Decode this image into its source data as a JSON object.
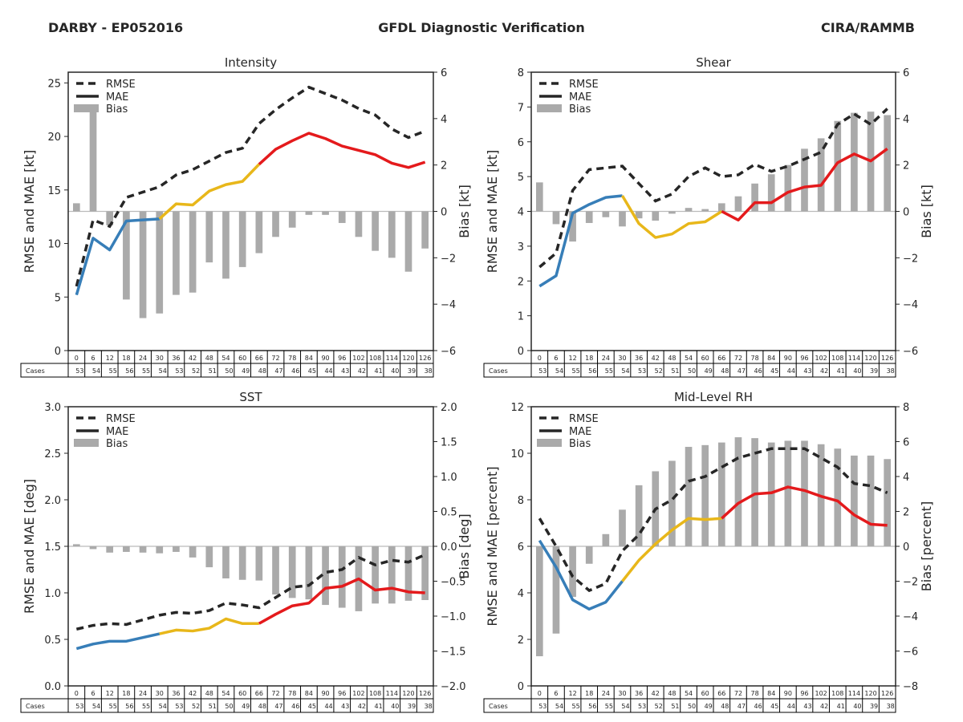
{
  "header": {
    "left": "DARBY - EP052016",
    "center": "GFDL Diagnostic Verification",
    "right": "CIRA/RAMMB"
  },
  "colors": {
    "early": "#377eb8",
    "mid": "#e8b71a",
    "late": "#e41a1c",
    "rmse": "#262626",
    "bias": "#aaaaaa",
    "zero_line": "#bbbbbb"
  },
  "legend": {
    "rmse": "RMSE",
    "mae": "MAE",
    "bias": "Bias"
  },
  "table": {
    "cases_label": "Cases",
    "hours": [
      "0",
      "6",
      "12",
      "18",
      "24",
      "30",
      "36",
      "42",
      "48",
      "54",
      "60",
      "66",
      "72",
      "78",
      "84",
      "90",
      "96",
      "102",
      "108",
      "114",
      "120",
      "126"
    ],
    "cases": [
      "53",
      "54",
      "55",
      "56",
      "55",
      "54",
      "53",
      "52",
      "51",
      "50",
      "49",
      "48",
      "47",
      "46",
      "45",
      "44",
      "43",
      "42",
      "41",
      "40",
      "39",
      "38"
    ]
  },
  "chart_data": [
    {
      "type": "line",
      "title": "Intensity",
      "ylabel": "RMSE and MAE [kt]",
      "y2label": "Bias [kt]",
      "ylim": [
        0,
        26
      ],
      "yticks": [
        "0",
        "5",
        "10",
        "15",
        "20",
        "25"
      ],
      "yticks_values": [
        0,
        5,
        10,
        15,
        20,
        25
      ],
      "y2lim": [
        -6,
        6
      ],
      "y2ticks": [
        "−6",
        "−4",
        "−2",
        "0",
        "2",
        "4",
        "6"
      ],
      "y2ticks_values": [
        -6,
        -4,
        -2,
        0,
        2,
        4,
        6
      ],
      "x": [
        0,
        6,
        12,
        18,
        24,
        30,
        36,
        42,
        48,
        54,
        60,
        66,
        72,
        78,
        84,
        90,
        96,
        102,
        108,
        114,
        120,
        126
      ],
      "legend_position": "upper-left",
      "series": [
        {
          "name": "RMSE",
          "values": [
            6.0,
            12.2,
            11.6,
            14.3,
            14.8,
            15.3,
            16.4,
            16.9,
            17.7,
            18.5,
            18.9,
            21.2,
            22.5,
            23.6,
            24.6,
            24.0,
            23.4,
            22.6,
            22.0,
            20.7,
            19.9,
            20.5
          ]
        },
        {
          "name": "MAE",
          "values": [
            5.2,
            10.5,
            9.4,
            12.1,
            12.2,
            12.3,
            13.7,
            13.6,
            14.9,
            15.5,
            15.8,
            17.4,
            18.8,
            19.6,
            20.3,
            19.8,
            19.1,
            18.7,
            18.3,
            17.5,
            17.1,
            17.6
          ]
        },
        {
          "name": "Bias",
          "values": [
            0.35,
            4.45,
            -0.6,
            -3.8,
            -4.6,
            -4.4,
            -3.6,
            -3.5,
            -2.2,
            -2.9,
            -2.4,
            -1.8,
            -1.1,
            -0.7,
            -0.15,
            -0.15,
            -0.5,
            -1.1,
            -1.7,
            -2.0,
            -2.6,
            -1.6
          ]
        }
      ]
    },
    {
      "type": "line",
      "title": "Shear",
      "ylabel": "RMSE and MAE [kt]",
      "y2label": "Bias [kt]",
      "ylim": [
        0,
        8
      ],
      "yticks": [
        "0",
        "1",
        "2",
        "3",
        "4",
        "5",
        "6",
        "7",
        "8"
      ],
      "yticks_values": [
        0,
        1,
        2,
        3,
        4,
        5,
        6,
        7,
        8
      ],
      "y2lim": [
        -6,
        6
      ],
      "y2ticks": [
        "−6",
        "−4",
        "−2",
        "0",
        "2",
        "4",
        "6"
      ],
      "y2ticks_values": [
        -6,
        -4,
        -2,
        0,
        2,
        4,
        6
      ],
      "x": [
        0,
        6,
        12,
        18,
        24,
        30,
        36,
        42,
        48,
        54,
        60,
        66,
        72,
        78,
        84,
        90,
        96,
        102,
        108,
        114,
        120,
        126
      ],
      "legend_position": "upper-left",
      "series": [
        {
          "name": "RMSE",
          "values": [
            2.4,
            2.8,
            4.6,
            5.2,
            5.25,
            5.3,
            4.8,
            4.3,
            4.5,
            5.0,
            5.25,
            5.0,
            5.05,
            5.35,
            5.15,
            5.3,
            5.5,
            5.7,
            6.5,
            6.8,
            6.5,
            6.95
          ]
        },
        {
          "name": "MAE",
          "values": [
            1.85,
            2.15,
            3.95,
            4.2,
            4.4,
            4.45,
            3.65,
            3.25,
            3.35,
            3.65,
            3.7,
            4.0,
            3.75,
            4.25,
            4.25,
            4.55,
            4.7,
            4.75,
            5.4,
            5.65,
            5.45,
            5.8
          ]
        },
        {
          "name": "Bias",
          "values": [
            1.25,
            -0.55,
            -1.3,
            -0.5,
            -0.25,
            -0.65,
            -0.3,
            -0.4,
            -0.1,
            0.15,
            0.1,
            0.35,
            0.65,
            1.2,
            1.6,
            2.0,
            2.7,
            3.15,
            3.9,
            4.25,
            4.3,
            4.15
          ]
        }
      ]
    },
    {
      "type": "line",
      "title": "SST",
      "ylabel": "RMSE and MAE [deg]",
      "y2label": "Bias [deg]",
      "ylim": [
        0,
        3.0
      ],
      "yticks": [
        "0.0",
        "0.5",
        "1.0",
        "1.5",
        "2.0",
        "2.5",
        "3.0"
      ],
      "yticks_values": [
        0,
        0.5,
        1.0,
        1.5,
        2.0,
        2.5,
        3.0
      ],
      "y2lim": [
        -2.0,
        2.0
      ],
      "y2ticks": [
        "−2.0",
        "−1.5",
        "−1.0",
        "−0.5",
        "0.0",
        "0.5",
        "1.0",
        "1.5",
        "2.0"
      ],
      "y2ticks_values": [
        -2.0,
        -1.5,
        -1.0,
        -0.5,
        0,
        0.5,
        1.0,
        1.5,
        2.0
      ],
      "x": [
        0,
        6,
        12,
        18,
        24,
        30,
        36,
        42,
        48,
        54,
        60,
        66,
        72,
        78,
        84,
        90,
        96,
        102,
        108,
        114,
        120,
        126
      ],
      "legend_position": "upper-left",
      "series": [
        {
          "name": "RMSE",
          "values": [
            0.61,
            0.65,
            0.67,
            0.66,
            0.71,
            0.76,
            0.79,
            0.78,
            0.81,
            0.89,
            0.87,
            0.84,
            0.95,
            1.06,
            1.08,
            1.22,
            1.25,
            1.38,
            1.3,
            1.35,
            1.33,
            1.41
          ]
        },
        {
          "name": "MAE",
          "values": [
            0.4,
            0.45,
            0.48,
            0.48,
            0.52,
            0.56,
            0.6,
            0.59,
            0.62,
            0.72,
            0.67,
            0.67,
            0.77,
            0.86,
            0.89,
            1.05,
            1.07,
            1.15,
            1.03,
            1.05,
            1.01,
            1.0
          ]
        },
        {
          "name": "Bias",
          "values": [
            0.03,
            -0.04,
            -0.09,
            -0.08,
            -0.09,
            -0.1,
            -0.08,
            -0.16,
            -0.3,
            -0.46,
            -0.48,
            -0.49,
            -0.69,
            -0.74,
            -0.76,
            -0.84,
            -0.88,
            -0.93,
            -0.82,
            -0.82,
            -0.78,
            -0.77
          ]
        }
      ]
    },
    {
      "type": "line",
      "title": "Mid-Level RH",
      "ylabel": "RMSE and MAE [percent]",
      "y2label": "Bias [percent]",
      "ylim": [
        0,
        12
      ],
      "yticks": [
        "0",
        "2",
        "4",
        "6",
        "8",
        "10",
        "12"
      ],
      "yticks_values": [
        0,
        2,
        4,
        6,
        8,
        10,
        12
      ],
      "y2lim": [
        -8,
        8
      ],
      "y2ticks": [
        "−8",
        "−6",
        "−4",
        "−2",
        "0",
        "2",
        "4",
        "6",
        "8"
      ],
      "y2ticks_values": [
        -8,
        -6,
        -4,
        -2,
        0,
        2,
        4,
        6,
        8
      ],
      "x": [
        0,
        6,
        12,
        18,
        24,
        30,
        36,
        42,
        48,
        54,
        60,
        66,
        72,
        78,
        84,
        90,
        96,
        102,
        108,
        114,
        120,
        126
      ],
      "legend_position": "upper-left",
      "series": [
        {
          "name": "RMSE",
          "values": [
            7.2,
            6.0,
            4.7,
            4.1,
            4.4,
            5.8,
            6.5,
            7.6,
            8.0,
            8.8,
            9.0,
            9.4,
            9.8,
            10.0,
            10.2,
            10.2,
            10.2,
            9.8,
            9.4,
            8.7,
            8.6,
            8.3
          ]
        },
        {
          "name": "MAE",
          "values": [
            6.25,
            5.1,
            3.7,
            3.3,
            3.6,
            4.5,
            5.4,
            6.1,
            6.7,
            7.2,
            7.15,
            7.2,
            7.85,
            8.25,
            8.3,
            8.55,
            8.4,
            8.15,
            7.95,
            7.35,
            6.95,
            6.9
          ]
        },
        {
          "name": "Bias",
          "values": [
            -6.3,
            -5.0,
            -2.9,
            -1.0,
            0.7,
            2.1,
            3.5,
            4.3,
            4.9,
            5.7,
            5.8,
            5.95,
            6.25,
            6.2,
            5.95,
            6.05,
            6.05,
            5.85,
            5.6,
            5.2,
            5.2,
            5.0
          ]
        }
      ]
    }
  ]
}
